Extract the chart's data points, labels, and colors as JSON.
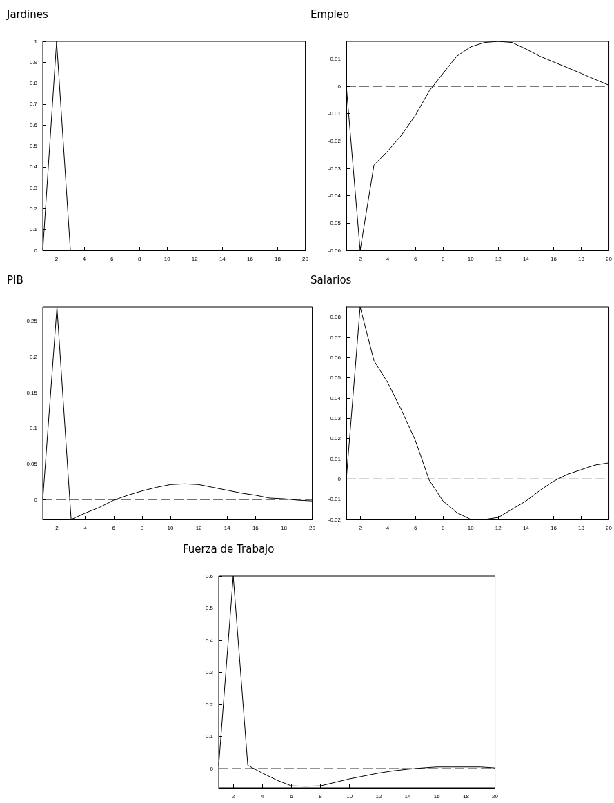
{
  "chart_data": [
    {
      "type": "line",
      "title": "Jardines",
      "x": [
        1,
        2,
        3,
        4,
        5,
        6,
        7,
        8,
        9,
        10,
        11,
        12,
        13,
        14,
        15,
        16,
        17,
        18,
        19,
        20
      ],
      "values": [
        0,
        1,
        0,
        0,
        0,
        0,
        0,
        0,
        0,
        0,
        0,
        0,
        0,
        0,
        0,
        0,
        0,
        0,
        0,
        0
      ],
      "color": "#000000",
      "xlim": [
        1,
        20
      ],
      "xticks": [
        2,
        4,
        6,
        8,
        10,
        12,
        14,
        16,
        18,
        20
      ],
      "ylim": [
        0,
        1
      ],
      "yticks": [
        0,
        0.1,
        0.2,
        0.3,
        0.4,
        0.5,
        0.6,
        0.7,
        0.8,
        0.9,
        1
      ],
      "grid": false,
      "marker": "none",
      "line_style": "solid"
    },
    {
      "type": "line",
      "title": "Empleo",
      "x": [
        1,
        2,
        3,
        4,
        5,
        6,
        7,
        8,
        9,
        10,
        11,
        12,
        13,
        14,
        15,
        16,
        17,
        18,
        19,
        20
      ],
      "values": [
        0,
        -0.06,
        -0.0288,
        -0.0237,
        -0.0178,
        -0.0106,
        -0.0017,
        0.0047,
        0.011,
        0.0144,
        0.016,
        0.0164,
        0.016,
        0.0136,
        0.011,
        0.0089,
        0.0068,
        0.0047,
        0.0025,
        0.0004
      ],
      "color": "#000000",
      "xlim": [
        1,
        20
      ],
      "xticks": [
        2,
        4,
        6,
        8,
        10,
        12,
        14,
        16,
        18,
        20
      ],
      "ylim": [
        -0.06,
        0.0164
      ],
      "yticks": [
        -0.06,
        -0.05,
        -0.04,
        -0.03,
        -0.02,
        -0.01,
        0,
        0.01
      ],
      "grid": false,
      "marker": "none",
      "line_style": "solid",
      "ref_lines": [
        {
          "axis": "y",
          "value": 0,
          "color": "#000000",
          "line_style": "dashed"
        }
      ]
    },
    {
      "type": "line",
      "title": "PIB",
      "x": [
        1,
        2,
        3,
        4,
        5,
        6,
        7,
        8,
        9,
        10,
        11,
        12,
        13,
        14,
        15,
        16,
        17,
        18,
        19,
        20
      ],
      "values": [
        0,
        0.27,
        -0.028,
        -0.019,
        -0.011,
        -0.001,
        0.006,
        0.012,
        0.017,
        0.021,
        0.022,
        0.021,
        0.017,
        0.013,
        0.009,
        0.006,
        0.002,
        0.001,
        -0.001,
        -0.002
      ],
      "color": "#000000",
      "xlim": [
        1,
        20
      ],
      "xticks": [
        2,
        4,
        6,
        8,
        10,
        12,
        14,
        16,
        18,
        20
      ],
      "ylim": [
        -0.028,
        0.27
      ],
      "yticks": [
        0,
        0.05,
        0.1,
        0.15,
        0.2,
        0.25
      ],
      "grid": false,
      "marker": "none",
      "line_style": "solid",
      "ref_lines": [
        {
          "axis": "y",
          "value": 0,
          "color": "#000000",
          "line_style": "dashed"
        }
      ]
    },
    {
      "type": "line",
      "title": "Salarios",
      "x": [
        1,
        2,
        3,
        4,
        5,
        6,
        7,
        8,
        9,
        10,
        11,
        12,
        13,
        14,
        15,
        16,
        17,
        18,
        19,
        20
      ],
      "values": [
        0,
        0.085,
        0.0585,
        0.0476,
        0.0339,
        0.019,
        -0.0006,
        -0.0109,
        -0.0166,
        -0.02,
        -0.02,
        -0.019,
        -0.0149,
        -0.0109,
        -0.0057,
        -0.0011,
        0.0023,
        0.0046,
        0.0069,
        0.008
      ],
      "color": "#000000",
      "xlim": [
        1,
        20
      ],
      "xticks": [
        2,
        4,
        6,
        8,
        10,
        12,
        14,
        16,
        18,
        20
      ],
      "ylim": [
        -0.02,
        0.085
      ],
      "yticks": [
        -0.02,
        -0.01,
        0,
        0.01,
        0.02,
        0.03,
        0.04,
        0.05,
        0.06,
        0.07,
        0.08
      ],
      "grid": false,
      "marker": "none",
      "line_style": "solid",
      "ref_lines": [
        {
          "axis": "y",
          "value": 0,
          "color": "#000000",
          "line_style": "dashed"
        }
      ]
    },
    {
      "type": "line",
      "title": "Fuerza de Trabajo",
      "x": [
        1,
        2,
        3,
        4,
        5,
        6,
        7,
        8,
        9,
        10,
        11,
        12,
        13,
        14,
        15,
        16,
        17,
        18,
        19,
        20
      ],
      "values": [
        0.01,
        0.6,
        0.01,
        -0.014,
        -0.036,
        -0.054,
        -0.055,
        -0.054,
        -0.043,
        -0.032,
        -0.023,
        -0.014,
        -0.007,
        -0.002,
        0.002,
        0.005,
        0.005,
        0.005,
        0.005,
        0.002
      ],
      "color": "#000000",
      "xlim": [
        1,
        20
      ],
      "xticks": [
        2,
        4,
        6,
        8,
        10,
        12,
        14,
        16,
        18,
        20
      ],
      "ylim": [
        -0.06,
        0.6
      ],
      "yticks": [
        0,
        0.1,
        0.2,
        0.3,
        0.4,
        0.5,
        0.6
      ],
      "grid": false,
      "marker": "none",
      "line_style": "solid",
      "ref_lines": [
        {
          "axis": "y",
          "value": 0,
          "color": "#000000",
          "line_style": "dashed"
        }
      ]
    }
  ]
}
